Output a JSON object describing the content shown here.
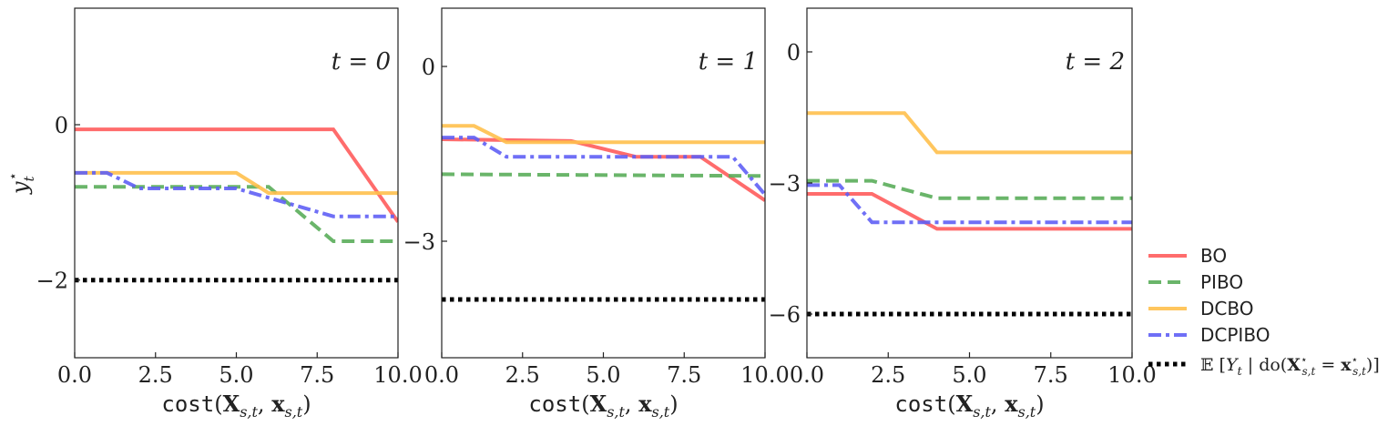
{
  "chart_data": [
    {
      "type": "line",
      "annotation": "t = 0",
      "xlabel": "cost(X_{s,t}, x_{s,t})",
      "ylabel": "y_t^⋆",
      "xlim": [
        0,
        10
      ],
      "ylim": [
        -3,
        1.5
      ],
      "xticks": [
        0,
        2.5,
        5,
        7.5,
        10
      ],
      "xtick_labels": [
        "0.0",
        "2.5",
        "5.0",
        "7.5",
        "10.0"
      ],
      "yticks": [
        0,
        -2
      ],
      "ytick_labels": [
        "0",
        "−2"
      ],
      "series": [
        {
          "name": "BO",
          "x": [
            0,
            8,
            10
          ],
          "y": [
            -0.06,
            -0.06,
            -1.25
          ]
        },
        {
          "name": "PIBO",
          "x": [
            0,
            6,
            8,
            10
          ],
          "y": [
            -0.8,
            -0.8,
            -1.5,
            -1.5
          ]
        },
        {
          "name": "DCBO",
          "x": [
            0,
            5,
            6,
            10
          ],
          "y": [
            -0.62,
            -0.62,
            -0.88,
            -0.88
          ]
        },
        {
          "name": "DCPIBO",
          "x": [
            0,
            1,
            2,
            5,
            8,
            10
          ],
          "y": [
            -0.62,
            -0.62,
            -0.82,
            -0.82,
            -1.18,
            -1.18
          ]
        },
        {
          "name": "E",
          "x": [
            0,
            10
          ],
          "y": [
            -2.0,
            -2.0
          ]
        }
      ]
    },
    {
      "type": "line",
      "annotation": "t = 1",
      "xlabel": "cost(X_{s,t}, x_{s,t})",
      "ylabel": "",
      "xlim": [
        0,
        10
      ],
      "ylim": [
        -5,
        1
      ],
      "xticks": [
        0,
        2.5,
        5,
        7.5,
        10
      ],
      "xtick_labels": [
        "0.0",
        "2.5",
        "5.0",
        "7.5",
        "10.0"
      ],
      "yticks": [
        0,
        -3
      ],
      "ytick_labels": [
        "0",
        "−3"
      ],
      "series": [
        {
          "name": "BO",
          "x": [
            0,
            4,
            6,
            8,
            10
          ],
          "y": [
            -1.25,
            -1.28,
            -1.55,
            -1.55,
            -2.3
          ]
        },
        {
          "name": "PIBO",
          "x": [
            0,
            10
          ],
          "y": [
            -1.85,
            -1.88
          ]
        },
        {
          "name": "DCBO",
          "x": [
            0,
            1,
            2,
            10
          ],
          "y": [
            -1.02,
            -1.02,
            -1.3,
            -1.3
          ]
        },
        {
          "name": "DCPIBO",
          "x": [
            0,
            1,
            2,
            9,
            10
          ],
          "y": [
            -1.22,
            -1.22,
            -1.55,
            -1.55,
            -2.2
          ]
        },
        {
          "name": "E",
          "x": [
            0,
            10
          ],
          "y": [
            -4.0,
            -4.0
          ]
        }
      ]
    },
    {
      "type": "line",
      "annotation": "t = 2",
      "xlabel": "cost(X_{s,t}, x_{s,t})",
      "ylabel": "",
      "xlim": [
        0,
        10
      ],
      "ylim": [
        -7,
        1
      ],
      "xticks": [
        0,
        2.5,
        5,
        7.5,
        10
      ],
      "xtick_labels": [
        "0.0",
        "2.5",
        "5.0",
        "7.5",
        "10.0"
      ],
      "yticks": [
        0,
        -3,
        -6
      ],
      "ytick_labels": [
        "0",
        "−3",
        "−6"
      ],
      "series": [
        {
          "name": "BO",
          "x": [
            0,
            2,
            4,
            10
          ],
          "y": [
            -3.25,
            -3.25,
            -4.05,
            -4.05
          ]
        },
        {
          "name": "PIBO",
          "x": [
            0,
            2,
            4,
            10
          ],
          "y": [
            -2.95,
            -2.95,
            -3.35,
            -3.35
          ]
        },
        {
          "name": "DCBO",
          "x": [
            0,
            3,
            4,
            10
          ],
          "y": [
            -1.4,
            -1.4,
            -2.3,
            -2.3
          ]
        },
        {
          "name": "DCPIBO",
          "x": [
            0,
            1,
            2,
            10
          ],
          "y": [
            -3.05,
            -3.05,
            -3.9,
            -3.9
          ]
        },
        {
          "name": "E",
          "x": [
            0,
            10
          ],
          "y": [
            -6.0,
            -6.0
          ]
        }
      ]
    }
  ],
  "legend": {
    "placement": "lower-right outside",
    "entries": [
      {
        "key": "BO",
        "label": "BO",
        "color": "#ff5c5c",
        "dash": "solid"
      },
      {
        "key": "PIBO",
        "label": "PIBO",
        "color": "#5aad5a",
        "dash": "dashed"
      },
      {
        "key": "DCBO",
        "label": "DCBO",
        "color": "#ffc04d",
        "dash": "solid"
      },
      {
        "key": "DCPIBO",
        "label": "DCPIBO",
        "color": "#5f5ff5",
        "dash": "dashdot"
      },
      {
        "key": "E",
        "label": "𝔼 [Y_t | do(X⋆_{s,t} = x⋆_{s,t})]",
        "color": "#000000",
        "dash": "dotted"
      }
    ]
  }
}
